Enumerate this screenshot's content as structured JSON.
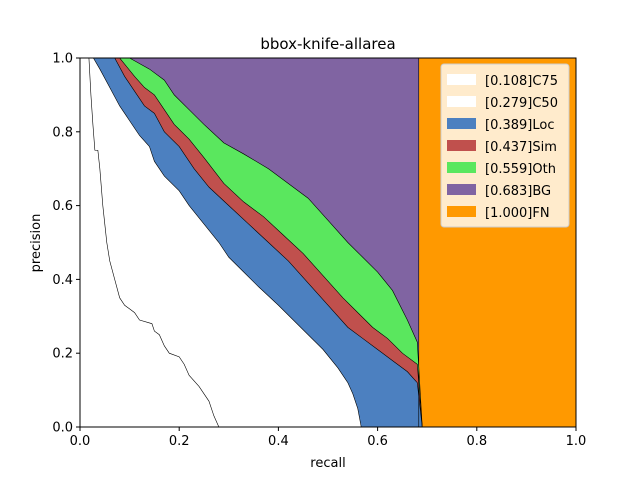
{
  "chart_data": {
    "type": "area",
    "title": "bbox-knife-allarea",
    "xlabel": "recall",
    "ylabel": "precision",
    "xlim": [
      0.0,
      1.0
    ],
    "ylim": [
      0.0,
      1.0
    ],
    "xticks": [
      "0.0",
      "0.2",
      "0.4",
      "0.6",
      "0.8",
      "1.0"
    ],
    "yticks": [
      "0.0",
      "0.2",
      "0.4",
      "0.6",
      "0.8",
      "1.0"
    ],
    "grid": false,
    "legend_position": "top-right",
    "series": [
      {
        "name": "[0.108]C75",
        "color": "#ffffff",
        "points": [
          [
            0.018,
            1.0
          ],
          [
            0.022,
            0.9
          ],
          [
            0.026,
            0.82
          ],
          [
            0.03,
            0.75
          ],
          [
            0.036,
            0.75
          ],
          [
            0.04,
            0.7
          ],
          [
            0.046,
            0.6
          ],
          [
            0.05,
            0.55
          ],
          [
            0.054,
            0.5
          ],
          [
            0.06,
            0.45
          ],
          [
            0.07,
            0.4
          ],
          [
            0.08,
            0.35
          ],
          [
            0.09,
            0.33
          ],
          [
            0.1,
            0.32
          ],
          [
            0.11,
            0.31
          ],
          [
            0.12,
            0.29
          ],
          [
            0.145,
            0.28
          ],
          [
            0.15,
            0.26
          ],
          [
            0.16,
            0.25
          ],
          [
            0.17,
            0.22
          ],
          [
            0.18,
            0.2
          ],
          [
            0.2,
            0.19
          ],
          [
            0.21,
            0.17
          ],
          [
            0.22,
            0.14
          ],
          [
            0.24,
            0.11
          ],
          [
            0.26,
            0.07
          ],
          [
            0.27,
            0.03
          ],
          [
            0.28,
            0.0
          ]
        ]
      },
      {
        "name": "[0.279]C50",
        "color": "#ffffff",
        "points": [
          [
            0.027,
            1.0
          ],
          [
            0.04,
            0.97
          ],
          [
            0.06,
            0.92
          ],
          [
            0.08,
            0.87
          ],
          [
            0.1,
            0.83
          ],
          [
            0.12,
            0.79
          ],
          [
            0.14,
            0.76
          ],
          [
            0.15,
            0.72
          ],
          [
            0.17,
            0.68
          ],
          [
            0.2,
            0.64
          ],
          [
            0.22,
            0.6
          ],
          [
            0.25,
            0.55
          ],
          [
            0.28,
            0.5
          ],
          [
            0.3,
            0.46
          ],
          [
            0.33,
            0.42
          ],
          [
            0.36,
            0.38
          ],
          [
            0.4,
            0.33
          ],
          [
            0.43,
            0.29
          ],
          [
            0.46,
            0.25
          ],
          [
            0.49,
            0.21
          ],
          [
            0.52,
            0.16
          ],
          [
            0.54,
            0.12
          ],
          [
            0.55,
            0.09
          ],
          [
            0.56,
            0.05
          ],
          [
            0.567,
            0.0
          ]
        ]
      },
      {
        "name": "[0.389]Loc",
        "color": "#4c80c0",
        "points": [
          [
            0.07,
            1.0
          ],
          [
            0.09,
            0.95
          ],
          [
            0.11,
            0.91
          ],
          [
            0.13,
            0.87
          ],
          [
            0.15,
            0.85
          ],
          [
            0.17,
            0.8
          ],
          [
            0.2,
            0.76
          ],
          [
            0.23,
            0.7
          ],
          [
            0.26,
            0.65
          ],
          [
            0.3,
            0.6
          ],
          [
            0.34,
            0.55
          ],
          [
            0.38,
            0.5
          ],
          [
            0.42,
            0.45
          ],
          [
            0.46,
            0.39
          ],
          [
            0.5,
            0.33
          ],
          [
            0.54,
            0.27
          ],
          [
            0.57,
            0.24
          ],
          [
            0.6,
            0.21
          ],
          [
            0.63,
            0.18
          ],
          [
            0.66,
            0.15
          ],
          [
            0.68,
            0.12
          ],
          [
            0.69,
            0.0
          ]
        ]
      },
      {
        "name": "[0.437]Sim",
        "color": "#c0504d",
        "points": [
          [
            0.07,
            1.0
          ],
          [
            0.08,
            1.0
          ],
          [
            0.11,
            0.95
          ],
          [
            0.13,
            0.92
          ],
          [
            0.15,
            0.9
          ],
          [
            0.17,
            0.86
          ],
          [
            0.19,
            0.82
          ],
          [
            0.22,
            0.78
          ],
          [
            0.25,
            0.73
          ],
          [
            0.29,
            0.66
          ],
          [
            0.33,
            0.61
          ],
          [
            0.37,
            0.57
          ],
          [
            0.41,
            0.52
          ],
          [
            0.45,
            0.47
          ],
          [
            0.49,
            0.41
          ],
          [
            0.53,
            0.35
          ],
          [
            0.56,
            0.31
          ],
          [
            0.59,
            0.27
          ],
          [
            0.62,
            0.24
          ],
          [
            0.65,
            0.2
          ],
          [
            0.68,
            0.17
          ],
          [
            0.69,
            0.0
          ]
        ]
      },
      {
        "name": "[0.559]Oth",
        "color": "#5ae75e",
        "points": [
          [
            0.08,
            1.0
          ],
          [
            0.1,
            1.0
          ],
          [
            0.14,
            0.97
          ],
          [
            0.17,
            0.94
          ],
          [
            0.19,
            0.9
          ],
          [
            0.22,
            0.86
          ],
          [
            0.25,
            0.82
          ],
          [
            0.29,
            0.77
          ],
          [
            0.33,
            0.74
          ],
          [
            0.38,
            0.7
          ],
          [
            0.42,
            0.66
          ],
          [
            0.46,
            0.62
          ],
          [
            0.5,
            0.56
          ],
          [
            0.54,
            0.5
          ],
          [
            0.57,
            0.46
          ],
          [
            0.6,
            0.42
          ],
          [
            0.63,
            0.37
          ],
          [
            0.66,
            0.29
          ],
          [
            0.68,
            0.23
          ],
          [
            0.69,
            0.0
          ]
        ]
      },
      {
        "name": "[0.683]BG",
        "color": "#8064a2",
        "points": [
          [
            0.1,
            1.0
          ],
          [
            0.683,
            1.0
          ],
          [
            0.683,
            0.0
          ]
        ]
      },
      {
        "name": "[1.000]FN",
        "color": "#ff9900",
        "points": [
          [
            0.683,
            1.0
          ],
          [
            1.0,
            1.0
          ],
          [
            1.0,
            0.0
          ]
        ]
      }
    ]
  }
}
